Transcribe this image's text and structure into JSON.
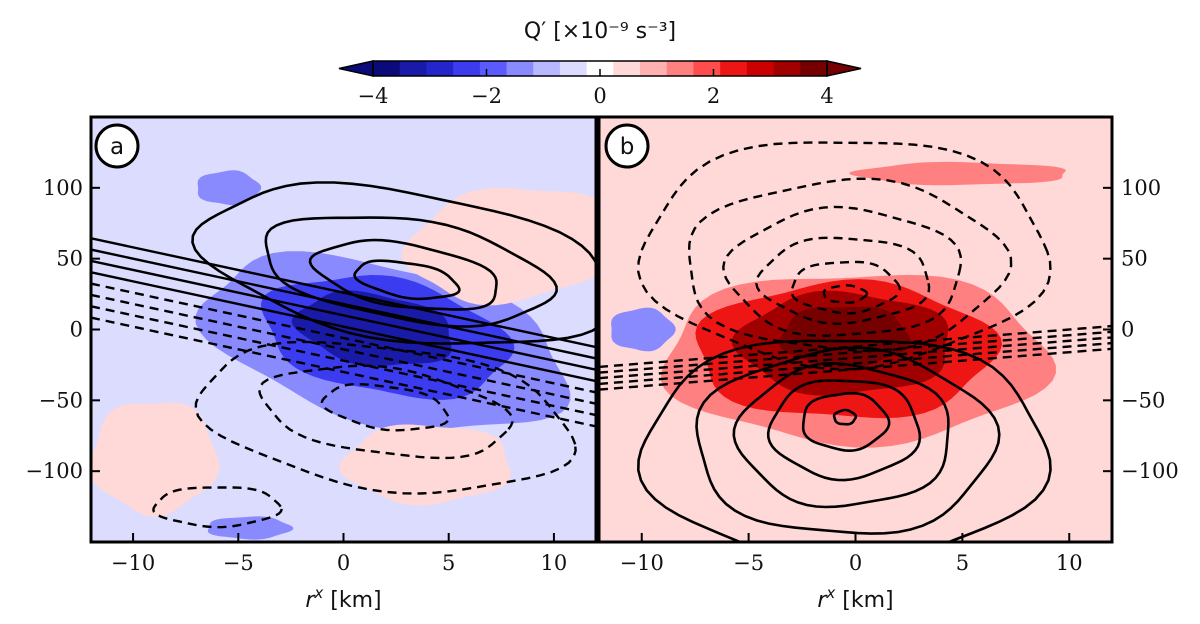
{
  "chart_data": {
    "type": "heatmap",
    "colorbar": {
      "title": "Q′ [×10⁻⁹ s⁻³]",
      "ticks": [
        -4,
        -2,
        0,
        2,
        4
      ],
      "tick_labels": [
        "−4",
        "−2",
        "0",
        "2",
        "4"
      ],
      "range": [
        -4,
        4
      ],
      "extend": "both",
      "colormap": "seismic",
      "colors": [
        "#0a0a7a",
        "#1a1aa8",
        "#2525cc",
        "#3b3bf0",
        "#5a5aff",
        "#8a8aff",
        "#b8b8ff",
        "#dcdcff",
        "#ffffff",
        "#ffd8d8",
        "#ffb0b0",
        "#ff8080",
        "#ff4c4c",
        "#ee1515",
        "#cc0000",
        "#a00000",
        "#760000"
      ]
    },
    "panels": [
      {
        "label": "a",
        "xlabel": "r^x [km]",
        "xlim": [
          -12,
          12
        ],
        "ylim": [
          -150,
          150
        ],
        "xticks": [
          -10,
          -5,
          0,
          5,
          10
        ],
        "xtick_labels": [
          "−10",
          "−5",
          "0",
          "5",
          "10"
        ],
        "yticks": [
          -100,
          -50,
          0,
          50,
          100
        ],
        "ytick_labels": [
          "−100",
          "−50",
          "0",
          "50",
          "100"
        ],
        "y_axis_side": "left",
        "background_value": -0.5,
        "shading": [
          {
            "value": -1.5,
            "center": [
              2,
              -10
            ],
            "radii": [
              9,
              55
            ],
            "rotation": -18
          },
          {
            "value": -2.5,
            "center": [
              2,
              -5
            ],
            "radii": [
              6,
              40
            ],
            "rotation": -15
          },
          {
            "value": -3.2,
            "center": [
              1.5,
              0
            ],
            "radii": [
              3.8,
              25
            ],
            "rotation": -12
          },
          {
            "value": -1.5,
            "center": [
              -5.5,
              100
            ],
            "radii": [
              1.5,
              12
            ],
            "rotation": 0
          },
          {
            "value": -1.5,
            "center": [
              -4.5,
              -140
            ],
            "radii": [
              2,
              8
            ],
            "rotation": 0
          },
          {
            "value": 0.5,
            "center": [
              8,
              60
            ],
            "radii": [
              5,
              40
            ],
            "rotation": 10
          },
          {
            "value": 0.5,
            "center": [
              -9,
              -90
            ],
            "radii": [
              3,
              40
            ],
            "rotation": 0
          },
          {
            "value": 0.5,
            "center": [
              4,
              -95
            ],
            "radii": [
              4,
              28
            ],
            "rotation": 0
          }
        ],
        "contours_positive": [
          {
            "center": [
              3,
              35
            ],
            "radii": [
              2.5,
              12
            ],
            "rotation": -12
          },
          {
            "center": [
              3,
              38
            ],
            "radii": [
              4.5,
              22
            ],
            "rotation": -12
          },
          {
            "center": [
              3,
              42
            ],
            "radii": [
              7,
              35
            ],
            "rotation": -12
          },
          {
            "center": [
              3,
              45
            ],
            "radii": [
              10,
              52
            ],
            "rotation": -12
          }
        ],
        "contours_negative": [
          {
            "center": [
              2,
              -55
            ],
            "radii": [
              3,
              15
            ],
            "rotation": -10
          },
          {
            "center": [
              2,
              -58
            ],
            "radii": [
              6,
              30
            ],
            "rotation": -10
          },
          {
            "center": [
              2,
              -62
            ],
            "radii": [
              9,
              50
            ],
            "rotation": -10
          },
          {
            "center": [
              -6,
              -125
            ],
            "radii": [
              3,
              14
            ],
            "rotation": 0
          }
        ],
        "streak_lines_y": [
          26,
          18,
          10,
          2,
          -6,
          -14,
          -22,
          -30
        ]
      },
      {
        "label": "b",
        "xlabel": "r^x [km]",
        "xlim": [
          -12,
          12
        ],
        "ylim": [
          -150,
          150
        ],
        "xticks": [
          -10,
          -5,
          0,
          5,
          10
        ],
        "xtick_labels": [
          "−10",
          "−5",
          "0",
          "5",
          "10"
        ],
        "yticks": [
          -100,
          -50,
          0,
          50,
          100
        ],
        "ytick_labels": [
          "−100",
          "−50",
          "0",
          "50",
          "100"
        ],
        "y_axis_side": "right",
        "background_value": 0.5,
        "shading": [
          {
            "value": 1.5,
            "center": [
              0,
              -20
            ],
            "radii": [
              9,
              60
            ],
            "rotation": 0
          },
          {
            "value": 2.5,
            "center": [
              -0.5,
              -15
            ],
            "radii": [
              7,
              48
            ],
            "rotation": 0
          },
          {
            "value": 3.2,
            "center": [
              -0.5,
              -10
            ],
            "radii": [
              5,
              36
            ],
            "rotation": 0
          },
          {
            "value": 3.8,
            "center": [
              -0.5,
              -5
            ],
            "radii": [
              3,
              22
            ],
            "rotation": 0
          },
          {
            "value": 1.5,
            "center": [
              5,
              110
            ],
            "radii": [
              5,
              8
            ],
            "rotation": 0
          },
          {
            "value": -1.5,
            "center": [
              -10,
              0
            ],
            "radii": [
              1.5,
              15
            ],
            "rotation": 0
          }
        ],
        "contours_positive": [
          {
            "center": [
              -0.5,
              -62
            ],
            "radii": [
              0.5,
              5
            ],
            "rotation": 0
          },
          {
            "center": [
              -0.5,
              -65
            ],
            "radii": [
              2,
              20
            ],
            "rotation": 0
          },
          {
            "center": [
              -0.5,
              -70
            ],
            "radii": [
              3.5,
              35
            ],
            "rotation": 0
          },
          {
            "center": [
              -0.5,
              -75
            ],
            "radii": [
              5,
              50
            ],
            "rotation": 0
          },
          {
            "center": [
              -0.5,
              -80
            ],
            "radii": [
              7,
              65
            ],
            "rotation": 0
          },
          {
            "center": [
              -0.5,
              -85
            ],
            "radii": [
              9.5,
              80
            ],
            "rotation": 0
          }
        ],
        "contours_negative": [
          {
            "center": [
              -0.5,
              25
            ],
            "radii": [
              1,
              6
            ],
            "rotation": 0
          },
          {
            "center": [
              -0.5,
              30
            ],
            "radii": [
              2.5,
              18
            ],
            "rotation": 0
          },
          {
            "center": [
              -0.5,
              35
            ],
            "radii": [
              4,
              30
            ],
            "rotation": 0
          },
          {
            "center": [
              -0.5,
              40
            ],
            "radii": [
              5.5,
              45
            ],
            "rotation": 0
          },
          {
            "center": [
              -0.5,
              45
            ],
            "radii": [
              7.5,
              60
            ],
            "rotation": 0
          },
          {
            "center": [
              -0.5,
              55
            ],
            "radii": [
              9.5,
              80
            ],
            "rotation": 0
          }
        ],
        "streak_lines_y": [
          -12,
          -16,
          -20,
          -24,
          -28
        ]
      }
    ]
  }
}
